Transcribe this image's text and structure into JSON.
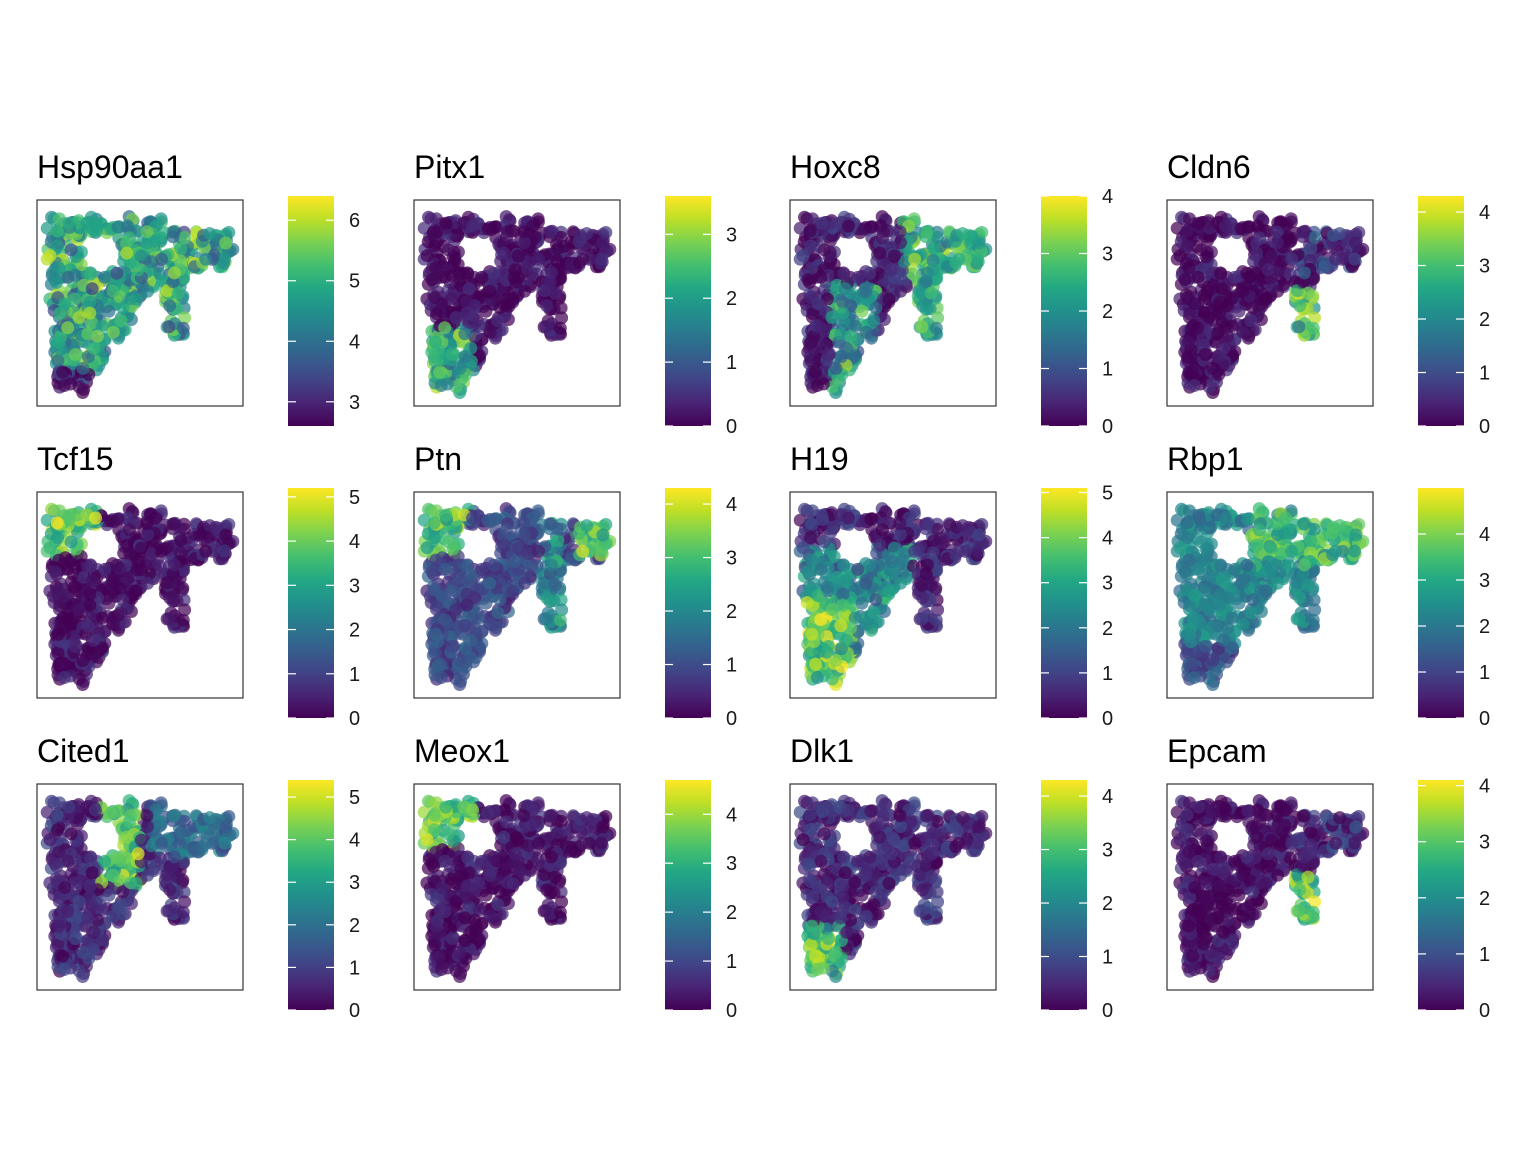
{
  "colormap": [
    "#440154",
    "#482475",
    "#414487",
    "#355f8d",
    "#2a788e",
    "#21918c",
    "#22a884",
    "#44bf70",
    "#7ad151",
    "#bddf26",
    "#fde725"
  ],
  "chart_data": [
    {
      "type": "scatter",
      "title": "Hsp90aa1",
      "colorbar": {
        "min": 2.6,
        "max": 6.4,
        "ticks": [
          3,
          4,
          5,
          6
        ]
      },
      "pattern": "hsp",
      "base": 5.3
    },
    {
      "type": "scatter",
      "title": "Pitx1",
      "colorbar": {
        "min": 0,
        "max": 3.6,
        "ticks": [
          0,
          1,
          2,
          3
        ]
      },
      "pattern": "pitx",
      "base": 0.1
    },
    {
      "type": "scatter",
      "title": "Hoxc8",
      "colorbar": {
        "min": 0,
        "max": 4,
        "ticks": [
          0,
          1,
          2,
          3,
          4
        ]
      },
      "pattern": "hoxc",
      "base": 0.3
    },
    {
      "type": "scatter",
      "title": "Cldn6",
      "colorbar": {
        "min": 0,
        "max": 4.3,
        "ticks": [
          0,
          1,
          2,
          3,
          4
        ]
      },
      "pattern": "tip",
      "base": 0.1
    },
    {
      "type": "scatter",
      "title": "Tcf15",
      "colorbar": {
        "min": 0,
        "max": 5.2,
        "ticks": [
          0,
          1,
          2,
          3,
          4,
          5
        ]
      },
      "pattern": "topleft",
      "base": 0.2
    },
    {
      "type": "scatter",
      "title": "Ptn",
      "colorbar": {
        "min": 0,
        "max": 4.3,
        "ticks": [
          0,
          1,
          2,
          3,
          4
        ]
      },
      "pattern": "ptn",
      "base": 0.9
    },
    {
      "type": "scatter",
      "title": "H19",
      "colorbar": {
        "min": 0,
        "max": 5.1,
        "ticks": [
          0,
          1,
          2,
          3,
          4,
          5
        ]
      },
      "pattern": "h19",
      "base": 1.5
    },
    {
      "type": "scatter",
      "title": "Rbp1",
      "colorbar": {
        "min": 0,
        "max": 5,
        "ticks": [
          0,
          1,
          2,
          3,
          4
        ]
      },
      "pattern": "rbp",
      "base": 2.2
    },
    {
      "type": "scatter",
      "title": "Cited1",
      "colorbar": {
        "min": 0,
        "max": 5.4,
        "ticks": [
          0,
          1,
          2,
          3,
          4,
          5
        ]
      },
      "pattern": "cited",
      "base": 0.6
    },
    {
      "type": "scatter",
      "title": "Meox1",
      "colorbar": {
        "min": 0,
        "max": 4.7,
        "ticks": [
          0,
          1,
          2,
          3,
          4
        ]
      },
      "pattern": "topleft",
      "base": 0.2
    },
    {
      "type": "scatter",
      "title": "Dlk1",
      "colorbar": {
        "min": 0,
        "max": 4.3,
        "ticks": [
          0,
          1,
          2,
          3,
          4
        ]
      },
      "pattern": "bottomleft",
      "base": 0.5
    },
    {
      "type": "scatter",
      "title": "Epcam",
      "colorbar": {
        "min": 0,
        "max": 4.1,
        "ticks": [
          0,
          1,
          2,
          3,
          4
        ]
      },
      "pattern": "tip",
      "base": 0.1
    }
  ]
}
